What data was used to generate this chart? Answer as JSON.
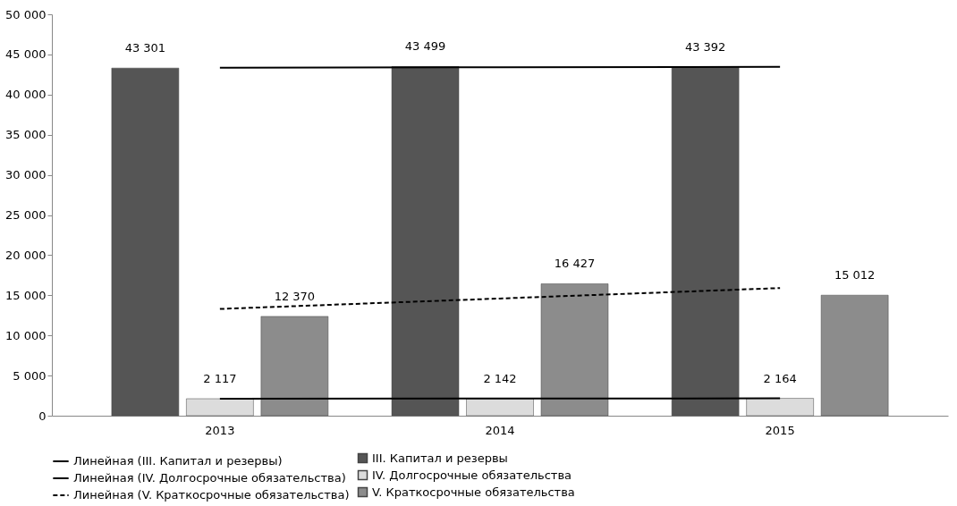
{
  "chart_data": {
    "type": "bar",
    "categories": [
      "2013",
      "2014",
      "2015"
    ],
    "series": [
      {
        "name": "III. Капитал  и резервы",
        "color": "#555555",
        "values": [
          43301,
          43499,
          43392
        ],
        "value_labels": [
          "43 301",
          "43 499",
          "43 392"
        ]
      },
      {
        "name": "IV. Долгосрочные обязательства",
        "color": "#dcdcdc",
        "values": [
          2117,
          2142,
          2164
        ],
        "value_labels": [
          "2 117",
          "2 142",
          "2 164"
        ]
      },
      {
        "name": "V. Краткосрочные обязательства",
        "color": "#8c8c8c",
        "values": [
          12370,
          16427,
          15012
        ],
        "value_labels": [
          "12 370",
          "16 427",
          "15 012"
        ]
      },
      {
        "name": "Линейная (III. Капитал  и резервы)",
        "type": "line",
        "color": "#000000",
        "line_style": "solid",
        "values": [
          43350,
          43400,
          43450
        ]
      },
      {
        "name": "Линейная (IV. Долгосрочные обязательства)",
        "type": "line",
        "color": "#000000",
        "line_style": "solid",
        "values": [
          2120,
          2140,
          2160
        ]
      },
      {
        "name": "Линейная (V. Краткосрочные обязательства)",
        "type": "line",
        "color": "#000000",
        "line_style": "dashed",
        "values": [
          13300,
          14600,
          15900
        ]
      }
    ],
    "ylim": [
      0,
      50000
    ],
    "yticks": [
      {
        "value": 0,
        "label": "0"
      },
      {
        "value": 5000,
        "label": "5 000"
      },
      {
        "value": 10000,
        "label": "10 000"
      },
      {
        "value": 15000,
        "label": "15 000"
      },
      {
        "value": 20000,
        "label": "20 000"
      },
      {
        "value": 25000,
        "label": "25 000"
      },
      {
        "value": 30000,
        "label": "30 000"
      },
      {
        "value": 35000,
        "label": "35 000"
      },
      {
        "value": 40000,
        "label": "40 000"
      },
      {
        "value": 45000,
        "label": "45 000"
      },
      {
        "value": 50000,
        "label": "50 000"
      }
    ],
    "grid": false,
    "legend": "bottom"
  }
}
